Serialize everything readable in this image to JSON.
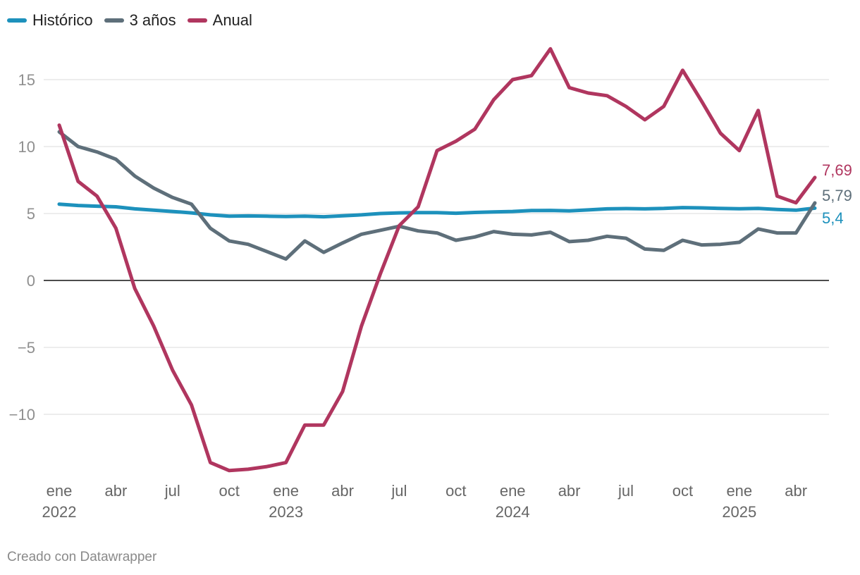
{
  "colors": {
    "historico": "#1d91bc",
    "tres_anos": "#5e6f7a",
    "anual": "#b0365f",
    "grid": "#e2e2e2",
    "zero": "#111111"
  },
  "chart_data": {
    "type": "line",
    "title": "",
    "xlabel": "",
    "ylabel": "",
    "ylim": [
      -14.5,
      17.5
    ],
    "yticks": [
      {
        "value": 15,
        "label": "15"
      },
      {
        "value": 10,
        "label": "10"
      },
      {
        "value": 5,
        "label": "5"
      },
      {
        "value": 0,
        "label": "0"
      },
      {
        "value": -5,
        "label": "−5"
      },
      {
        "value": -10,
        "label": "−10"
      }
    ],
    "x": [
      "2022-01",
      "2022-02",
      "2022-03",
      "2022-04",
      "2022-05",
      "2022-06",
      "2022-07",
      "2022-08",
      "2022-09",
      "2022-10",
      "2022-11",
      "2022-12",
      "2023-01",
      "2023-02",
      "2023-03",
      "2023-04",
      "2023-05",
      "2023-06",
      "2023-07",
      "2023-08",
      "2023-09",
      "2023-10",
      "2023-11",
      "2023-12",
      "2024-01",
      "2024-02",
      "2024-03",
      "2024-04",
      "2024-05",
      "2024-06",
      "2024-07",
      "2024-08",
      "2024-09",
      "2024-10",
      "2024-11",
      "2024-12",
      "2025-01",
      "2025-02",
      "2025-03",
      "2025-04",
      "2025-05"
    ],
    "xticks": [
      {
        "index": 0,
        "label": "ene",
        "year": "2022"
      },
      {
        "index": 3,
        "label": "abr",
        "year": ""
      },
      {
        "index": 6,
        "label": "jul",
        "year": ""
      },
      {
        "index": 9,
        "label": "oct",
        "year": ""
      },
      {
        "index": 12,
        "label": "ene",
        "year": "2023"
      },
      {
        "index": 15,
        "label": "abr",
        "year": ""
      },
      {
        "index": 18,
        "label": "jul",
        "year": ""
      },
      {
        "index": 21,
        "label": "oct",
        "year": ""
      },
      {
        "index": 24,
        "label": "ene",
        "year": "2024"
      },
      {
        "index": 27,
        "label": "abr",
        "year": ""
      },
      {
        "index": 30,
        "label": "jul",
        "year": ""
      },
      {
        "index": 33,
        "label": "oct",
        "year": ""
      },
      {
        "index": 36,
        "label": "ene",
        "year": "2025"
      },
      {
        "index": 39,
        "label": "abr",
        "year": ""
      }
    ],
    "series": [
      {
        "name": "Histórico",
        "key": "historico",
        "end_label": "5,4",
        "values": [
          5.7,
          5.6,
          5.55,
          5.5,
          5.35,
          5.25,
          5.15,
          5.05,
          4.9,
          4.8,
          4.82,
          4.8,
          4.78,
          4.8,
          4.76,
          4.83,
          4.9,
          5.0,
          5.05,
          5.07,
          5.07,
          5.02,
          5.08,
          5.12,
          5.15,
          5.22,
          5.23,
          5.2,
          5.27,
          5.35,
          5.37,
          5.35,
          5.38,
          5.44,
          5.42,
          5.38,
          5.36,
          5.38,
          5.3,
          5.25,
          5.4
        ]
      },
      {
        "name": "3 años",
        "key": "tres_anos",
        "end_label": "5,79",
        "values": [
          11.1,
          10.0,
          9.6,
          9.05,
          7.8,
          6.9,
          6.2,
          5.7,
          3.9,
          2.95,
          2.7,
          2.15,
          1.6,
          2.95,
          2.1,
          2.8,
          3.45,
          3.75,
          4.05,
          3.7,
          3.55,
          3.0,
          3.25,
          3.65,
          3.45,
          3.4,
          3.6,
          2.9,
          3.0,
          3.3,
          3.15,
          2.35,
          2.25,
          3.0,
          2.65,
          2.7,
          2.85,
          3.85,
          3.55,
          3.55,
          5.79
        ]
      },
      {
        "name": "Anual",
        "key": "anual",
        "end_label": "7,69",
        "values": [
          11.6,
          7.4,
          6.3,
          3.9,
          -0.6,
          -3.4,
          -6.7,
          -9.3,
          -13.6,
          -14.2,
          -14.1,
          -13.9,
          -13.6,
          -10.8,
          -10.8,
          -8.3,
          -3.4,
          0.5,
          4.1,
          5.5,
          9.7,
          10.4,
          11.3,
          13.5,
          15.0,
          15.3,
          17.3,
          14.4,
          14.0,
          13.8,
          13.0,
          12.0,
          13.0,
          15.7,
          13.4,
          11.0,
          9.7,
          12.7,
          6.3,
          5.8,
          7.69
        ]
      }
    ],
    "legend_position": "top-left"
  },
  "legend": {
    "items": [
      "Histórico",
      "3 años",
      "Anual"
    ]
  },
  "credit": "Creado con Datawrapper"
}
